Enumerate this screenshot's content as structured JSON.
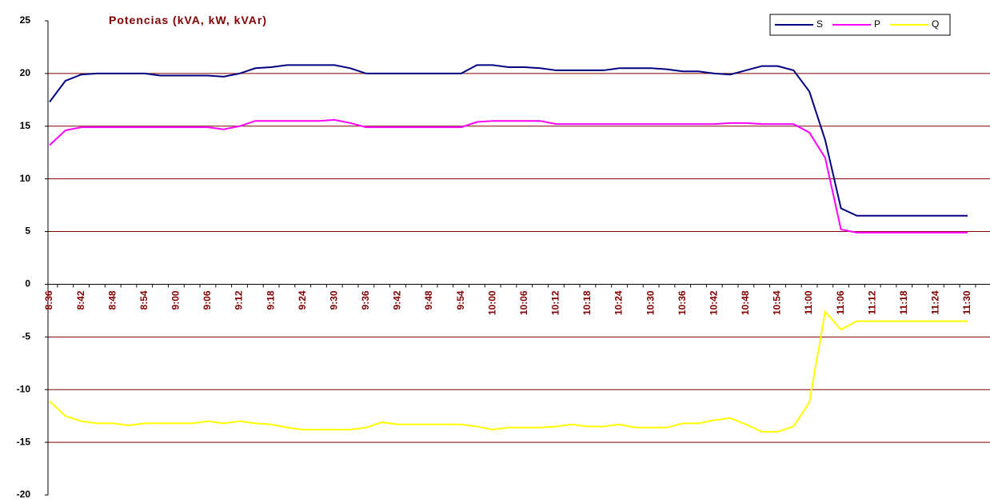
{
  "chart_data": {
    "type": "line",
    "title": "Potencias (kVA, kW, kVAr)",
    "categories": [
      "8:36",
      null,
      "8:42",
      null,
      "8:48",
      null,
      "8:54",
      null,
      "9:00",
      null,
      "9:06",
      null,
      "9:12",
      null,
      "9:18",
      null,
      "9:24",
      null,
      "9:30",
      null,
      "9:36",
      null,
      "9:42",
      null,
      "9:48",
      null,
      "9:54",
      null,
      "10:00",
      null,
      "10:06",
      null,
      "10:12",
      null,
      "10:18",
      null,
      "10:24",
      null,
      "10:30",
      null,
      "10:36",
      null,
      "10:42",
      null,
      "10:48",
      null,
      "10:54",
      null,
      "11:00",
      null,
      "11:06",
      null,
      "11:12",
      null,
      "11:18",
      null,
      "11:24",
      null,
      "11:30"
    ],
    "series": [
      {
        "name": "S",
        "color": "#000080",
        "values": [
          17.3,
          19.3,
          19.9,
          20.0,
          20.0,
          20.0,
          20.0,
          19.8,
          19.8,
          19.8,
          19.8,
          19.7,
          20.0,
          20.5,
          20.6,
          20.8,
          20.8,
          20.8,
          20.8,
          20.5,
          20.0,
          20.0,
          20.0,
          20.0,
          20.0,
          20.0,
          20.0,
          20.8,
          20.8,
          20.6,
          20.6,
          20.5,
          20.3,
          20.3,
          20.3,
          20.3,
          20.5,
          20.5,
          20.5,
          20.4,
          20.2,
          20.2,
          20.0,
          19.9,
          20.3,
          20.7,
          20.7,
          20.3,
          18.3,
          13.7,
          7.2,
          6.5,
          6.5,
          6.5,
          6.5,
          6.5,
          6.5,
          6.5,
          6.5
        ]
      },
      {
        "name": "P",
        "color": "#ff00ff",
        "values": [
          13.2,
          14.6,
          14.9,
          14.9,
          14.9,
          14.9,
          14.9,
          14.9,
          14.9,
          14.9,
          14.9,
          14.7,
          15.0,
          15.5,
          15.5,
          15.5,
          15.5,
          15.5,
          15.6,
          15.3,
          14.9,
          14.9,
          14.9,
          14.9,
          14.9,
          14.9,
          14.9,
          15.4,
          15.5,
          15.5,
          15.5,
          15.5,
          15.2,
          15.2,
          15.2,
          15.2,
          15.2,
          15.2,
          15.2,
          15.2,
          15.2,
          15.2,
          15.2,
          15.3,
          15.3,
          15.2,
          15.2,
          15.2,
          14.4,
          12.0,
          5.2,
          4.9,
          4.9,
          4.9,
          4.9,
          4.9,
          4.9,
          4.9,
          4.9
        ]
      },
      {
        "name": "Q",
        "color": "#ffff00",
        "values": [
          -11.1,
          -12.5,
          -13.0,
          -13.2,
          -13.2,
          -13.4,
          -13.2,
          -13.2,
          -13.2,
          -13.2,
          -13.0,
          -13.2,
          -13.0,
          -13.2,
          -13.3,
          -13.6,
          -13.8,
          -13.8,
          -13.8,
          -13.8,
          -13.6,
          -13.1,
          -13.3,
          -13.3,
          -13.3,
          -13.3,
          -13.3,
          -13.5,
          -13.8,
          -13.6,
          -13.6,
          -13.6,
          -13.5,
          -13.3,
          -13.5,
          -13.5,
          -13.3,
          -13.6,
          -13.6,
          -13.6,
          -13.2,
          -13.2,
          -12.9,
          -12.7,
          -13.3,
          -14.0,
          -14.0,
          -13.5,
          -11.2,
          -2.6,
          -4.3,
          -3.5,
          -3.5,
          -3.5,
          -3.5,
          -3.5,
          -3.5,
          -3.5,
          -3.5
        ]
      }
    ],
    "ylim": [
      -20,
      25
    ],
    "yticks": [
      -20,
      -15,
      -10,
      -5,
      0,
      5,
      10,
      15,
      20,
      25
    ],
    "grid": true,
    "legend": "top-right"
  }
}
